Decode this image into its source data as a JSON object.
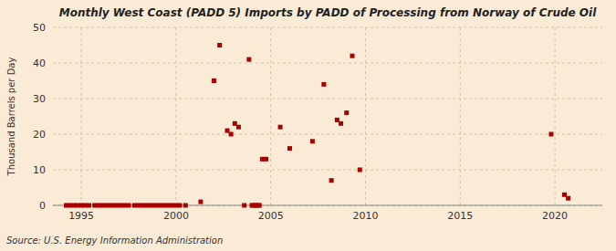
{
  "chart_data": {
    "type": "scatter",
    "title": "Monthly West Coast (PADD 5) Imports by PADD of Processing from Norway of Crude Oil",
    "y_label": "Thousand Barrels per Day",
    "annotations": [
      "Source: U.S. Energy Information Administration"
    ],
    "color": "#aa0000",
    "marker": "square",
    "grid": true,
    "xlim": [
      1993.5,
      2022.5
    ],
    "ylim": [
      0,
      50
    ],
    "xticks": [
      1995,
      2000,
      2005,
      2010,
      2015,
      2020
    ],
    "yticks": [
      0,
      10,
      20,
      30,
      40,
      50
    ],
    "x": [
      1994.2,
      1994.4,
      1994.6,
      1994.8,
      1995.0,
      1995.2,
      1995.4,
      1995.7,
      1995.9,
      1996.1,
      1996.3,
      1996.5,
      1996.7,
      1996.9,
      1997.1,
      1997.3,
      1997.5,
      1997.8,
      1998.0,
      1998.2,
      1998.4,
      1998.6,
      1998.8,
      1999.0,
      1999.2,
      1999.4,
      1999.6,
      1999.8,
      2000.0,
      2000.2,
      2000.5,
      2001.3,
      2002.0,
      2002.3,
      2002.7,
      2002.9,
      2003.1,
      2003.3,
      2003.6,
      2003.85,
      2004.0,
      2004.1,
      2004.2,
      2004.3,
      2004.4,
      2004.55,
      2004.75,
      2005.5,
      2006.0,
      2007.2,
      2007.8,
      2008.2,
      2008.5,
      2008.7,
      2009.0,
      2009.3,
      2009.7,
      2019.8,
      2020.5,
      2020.7
    ],
    "values": [
      0,
      0,
      0,
      0,
      0,
      0,
      0,
      0,
      0,
      0,
      0,
      0,
      0,
      0,
      0,
      0,
      0,
      0,
      0,
      0,
      0,
      0,
      0,
      0,
      0,
      0,
      0,
      0,
      0,
      0,
      0,
      1.0,
      35,
      45,
      21,
      20,
      23,
      22,
      0,
      41,
      0,
      0,
      0,
      0,
      0,
      13,
      13,
      22,
      16,
      18,
      34,
      7,
      24,
      23,
      26,
      42,
      10,
      20,
      3,
      2
    ]
  }
}
